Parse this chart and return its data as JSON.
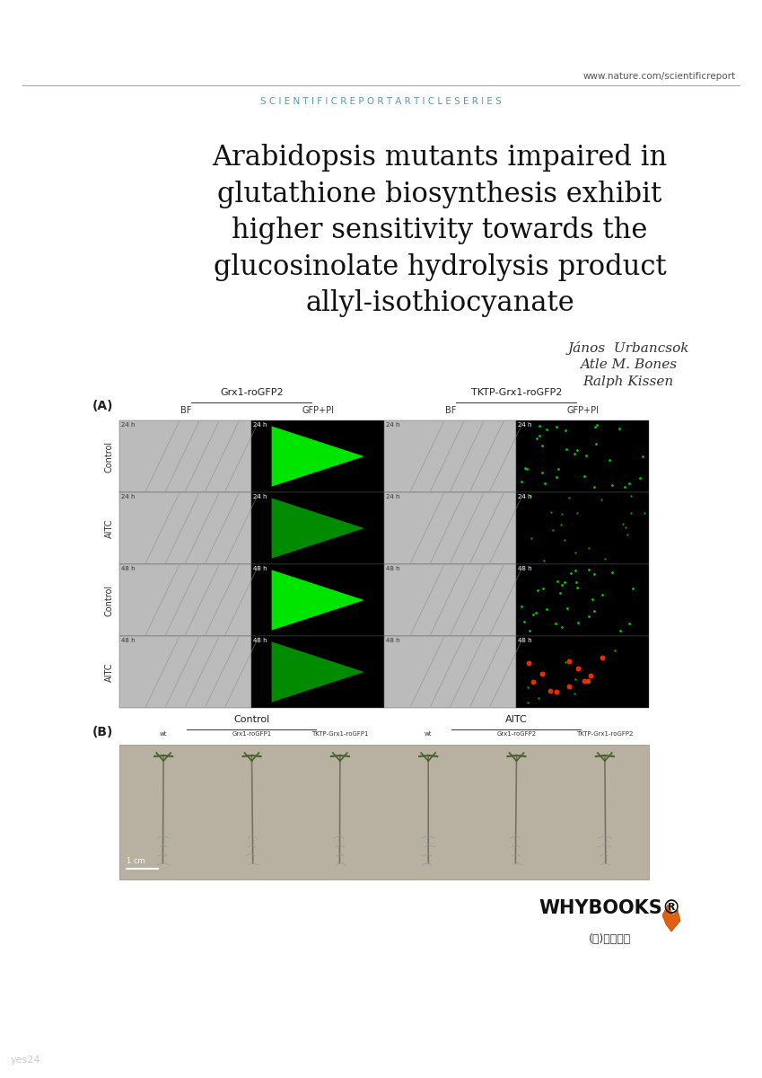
{
  "background_color": "#ffffff",
  "header_url": "www.nature.com/scientificreport",
  "header_series": "S C I E N T I F I C R E P O R T A R T I C L E S E R I E S",
  "header_line_color": "#aaaaaa",
  "header_url_color": "#555555",
  "header_series_color": "#5599bb",
  "title_lines": [
    "Arabidopsis mutants impaired in",
    "glutathione biosynthesis exhibit",
    "higher sensitivity towards the",
    "glucosinolate hydrolysis product",
    "allyl-isothiocyanate"
  ],
  "title_color": "#111111",
  "title_fontsize": 22,
  "authors": [
    "János  Urbancsok",
    "Atle M. Bones",
    "Ralph Kissen"
  ],
  "author_color": "#333333",
  "author_fontsize": 11,
  "panel_A_label": "(A)",
  "panel_B_label": "(B)",
  "panel_A_col_labels": [
    "Grx1-roGFP2",
    "TKTP-Grx1-roGFP2"
  ],
  "panel_A_sub_labels": [
    "BF",
    "GFP+PI",
    "BF",
    "GFP+PI"
  ],
  "panel_A_row_labels": [
    "Control",
    "AITC",
    "Control",
    "AITC"
  ],
  "panel_B_col_labels": [
    "Control",
    "AITC"
  ],
  "panel_B_sub_labels": [
    "wt",
    "Grx1-roGFP1",
    "TKTP-Grx1-roGFP1",
    "wt",
    "Grx1-roGFP2",
    "TKTP-Grx1-roGFP2"
  ],
  "whybooks_text": "WHYBOOKS®",
  "whybooks_sub": "(주)와이뺁스",
  "whybooks_color": "#111111",
  "yes24_text": "yes24",
  "yes24_color": "#aaaaaa"
}
